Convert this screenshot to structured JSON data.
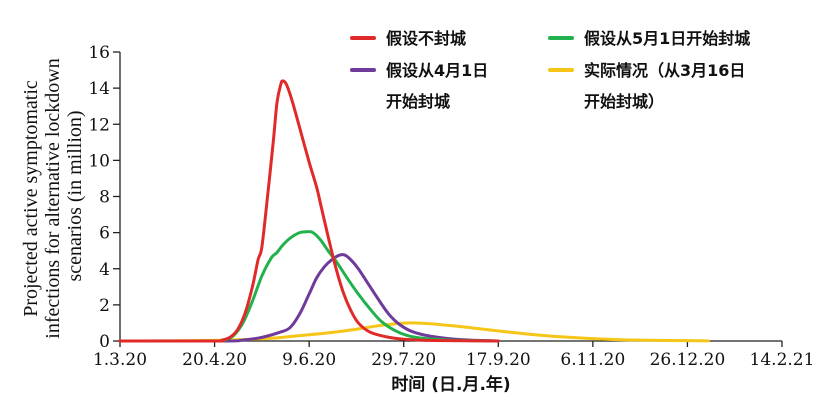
{
  "chart_data": {
    "type": "line",
    "title": "",
    "xlabel": "时间 (日.月.年)",
    "ylabel": [
      "Projected active symptomatic",
      "infections for alternative lockdown",
      "scenarios (in million)"
    ],
    "x_ticks": [
      "1.3.20",
      "20.4.20",
      "9.6.20",
      "29.7.20",
      "17.9.20",
      "6.11.20",
      "26.12.20",
      "14.2.21"
    ],
    "y_ticks": [
      "0",
      "2",
      "4",
      "6",
      "8",
      "10",
      "12",
      "14",
      "16"
    ],
    "ylim": [
      0,
      16
    ],
    "grid": false,
    "legend_position": "top-right",
    "series": [
      {
        "name": [
          "假设不封城"
        ],
        "color": "#e02a2a",
        "points": [
          [
            0,
            0
          ],
          [
            50,
            0
          ],
          [
            54,
            0.05
          ],
          [
            58,
            0.2
          ],
          [
            62,
            0.6
          ],
          [
            66,
            1.5
          ],
          [
            70,
            3.0
          ],
          [
            73,
            4.5
          ],
          [
            75,
            5.2
          ],
          [
            78,
            8.0
          ],
          [
            81,
            11.0
          ],
          [
            83,
            13.2
          ],
          [
            85,
            14.2
          ],
          [
            86,
            14.4
          ],
          [
            88,
            14.2
          ],
          [
            91,
            13.3
          ],
          [
            95,
            11.8
          ],
          [
            100,
            9.9
          ],
          [
            104,
            8.5
          ],
          [
            106,
            7.6
          ],
          [
            110,
            5.8
          ],
          [
            114,
            4.1
          ],
          [
            118,
            2.7
          ],
          [
            122,
            1.7
          ],
          [
            126,
            1.0
          ],
          [
            132,
            0.5
          ],
          [
            140,
            0.25
          ],
          [
            150,
            0.1
          ],
          [
            165,
            0.03
          ],
          [
            200,
            0
          ]
        ]
      },
      {
        "name": [
          "假设从4月1日",
          "开始封城"
        ],
        "color": "#6f3a9a",
        "points": [
          [
            0,
            0
          ],
          [
            55,
            0
          ],
          [
            65,
            0.05
          ],
          [
            75,
            0.2
          ],
          [
            85,
            0.5
          ],
          [
            90,
            0.75
          ],
          [
            95,
            1.5
          ],
          [
            100,
            2.6
          ],
          [
            104,
            3.5
          ],
          [
            108,
            4.1
          ],
          [
            112,
            4.5
          ],
          [
            116,
            4.75
          ],
          [
            119,
            4.75
          ],
          [
            122,
            4.5
          ],
          [
            126,
            4.0
          ],
          [
            131,
            3.2
          ],
          [
            136,
            2.4
          ],
          [
            142,
            1.5
          ],
          [
            148,
            0.9
          ],
          [
            155,
            0.5
          ],
          [
            165,
            0.25
          ],
          [
            180,
            0.08
          ],
          [
            200,
            0
          ]
        ]
      },
      {
        "name": [
          "假设从5月1日开始封城"
        ],
        "color": "#22b14c",
        "points": [
          [
            0,
            0
          ],
          [
            50,
            0
          ],
          [
            55,
            0.05
          ],
          [
            60,
            0.3
          ],
          [
            65,
            1.0
          ],
          [
            70,
            2.2
          ],
          [
            75,
            3.6
          ],
          [
            80,
            4.6
          ],
          [
            83,
            4.9
          ],
          [
            86,
            5.3
          ],
          [
            90,
            5.7
          ],
          [
            95,
            6.0
          ],
          [
            99,
            6.05
          ],
          [
            102,
            6.0
          ],
          [
            106,
            5.6
          ],
          [
            110,
            5.0
          ],
          [
            115,
            4.3
          ],
          [
            120,
            3.5
          ],
          [
            126,
            2.6
          ],
          [
            132,
            1.8
          ],
          [
            138,
            1.1
          ],
          [
            145,
            0.6
          ],
          [
            152,
            0.3
          ],
          [
            160,
            0.15
          ],
          [
            175,
            0.05
          ],
          [
            200,
            0
          ]
        ]
      },
      {
        "name": [
          "实际情况（从3月16日",
          "开始封城）"
        ],
        "color": "#f5c518",
        "points": [
          [
            0,
            0
          ],
          [
            40,
            0.02
          ],
          [
            60,
            0.06
          ],
          [
            80,
            0.15
          ],
          [
            95,
            0.3
          ],
          [
            110,
            0.45
          ],
          [
            125,
            0.65
          ],
          [
            135,
            0.82
          ],
          [
            145,
            0.95
          ],
          [
            152,
            1.0
          ],
          [
            160,
            0.98
          ],
          [
            175,
            0.85
          ],
          [
            190,
            0.68
          ],
          [
            205,
            0.5
          ],
          [
            220,
            0.34
          ],
          [
            235,
            0.22
          ],
          [
            250,
            0.13
          ],
          [
            265,
            0.07
          ],
          [
            280,
            0.04
          ],
          [
            300,
            0.02
          ],
          [
            311,
            0.01
          ]
        ]
      }
    ]
  }
}
